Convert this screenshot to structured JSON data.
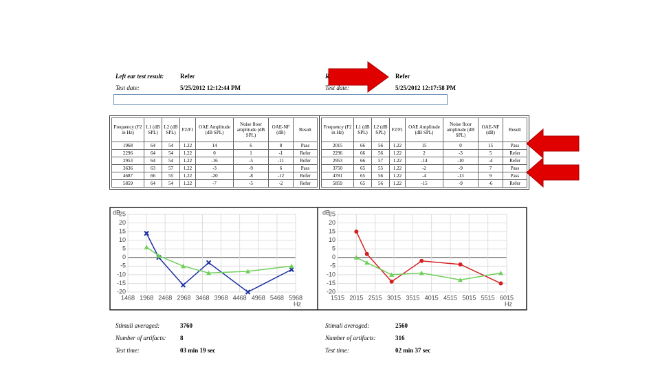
{
  "left": {
    "result_label": "Left ear test result:",
    "result": "Refer",
    "date_label": "Test date:",
    "date": "5/25/2012 12:12:44 PM",
    "table": {
      "columns": [
        "Frequency (F2 in Hz)",
        "L1 (dB SPL)",
        "L2 (dB SPL)",
        "F2/F1",
        "OAE Amplitude (dB SPL)",
        "Noise floor amplitude (dB SPL)",
        "OAE-NF (dB)",
        "Result"
      ],
      "rows": [
        [
          "1968",
          "64",
          "54",
          "1.22",
          "14",
          "6",
          "8",
          "Pass"
        ],
        [
          "2296",
          "64",
          "54",
          "1.22",
          "0",
          "1",
          "-1",
          "Refer"
        ],
        [
          "2953",
          "64",
          "54",
          "1.22",
          "-16",
          "-5",
          "-11",
          "Refer"
        ],
        [
          "3636",
          "63",
          "57",
          "1.22",
          "-3",
          "-9",
          "6",
          "Pass"
        ],
        [
          "4687",
          "66",
          "55",
          "1.22",
          "-20",
          "-8",
          "-12",
          "Refer"
        ],
        [
          "5859",
          "64",
          "54",
          "1.22",
          "-7",
          "-5",
          "-2",
          "Refer"
        ]
      ]
    },
    "summary": [
      {
        "label": "Stimuli averaged:",
        "value": "3760"
      },
      {
        "label": "Number of artifacts:",
        "value": "8"
      },
      {
        "label": "Test time:",
        "value": "03 min 19 sec"
      }
    ]
  },
  "right": {
    "result_label": "Right ear test result:",
    "result": "Refer",
    "date_label": "Test date:",
    "date": "5/25/2012 12:17:58 PM",
    "table": {
      "columns": [
        "Frequency (F2 in Hz)",
        "L1 (dB SPL)",
        "L2 (dB SPL)",
        "F2/F1",
        "OAE Amplitude (dB SPL)",
        "Noise floor amplitude (dB SPL)",
        "OAE-NF (dB)",
        "Result"
      ],
      "rows": [
        [
          "2015",
          "66",
          "56",
          "1.22",
          "15",
          "0",
          "15",
          "Pass"
        ],
        [
          "2296",
          "66",
          "56",
          "1.22",
          "2",
          "-3",
          "5",
          "Refer"
        ],
        [
          "2953",
          "66",
          "57",
          "1.22",
          "-14",
          "-10",
          "-4",
          "Refer"
        ],
        [
          "3750",
          "65",
          "55",
          "1.22",
          "-2",
          "-9",
          "7",
          "Pass"
        ],
        [
          "4781",
          "65",
          "56",
          "1.22",
          "-4",
          "-13",
          "9",
          "Pass"
        ],
        [
          "5859",
          "65",
          "56",
          "1.22",
          "-15",
          "-9",
          "-6",
          "Refer"
        ]
      ]
    },
    "summary": [
      {
        "label": "Stimuli averaged:",
        "value": "2560"
      },
      {
        "label": "Number of artifacts:",
        "value": "316"
      },
      {
        "label": "Test time:",
        "value": "02 min 37 sec"
      }
    ]
  },
  "charts": [
    {
      "type": "line",
      "ylabel": "dB",
      "xlabel": "Hz",
      "x": [
        1968,
        2296,
        2953,
        3636,
        4687,
        5859
      ],
      "series": [
        {
          "color": "#1c2fa0",
          "marker": "x",
          "values": [
            14,
            0,
            -16,
            -3,
            -20,
            -7
          ]
        },
        {
          "color": "#6fcf5a",
          "marker": "triangle",
          "values": [
            6,
            1,
            -5,
            -9,
            -8,
            -5
          ]
        }
      ],
      "xlim": [
        1468,
        5968
      ],
      "xticks": [
        1468,
        1968,
        2468,
        2968,
        3468,
        3968,
        4468,
        4968,
        5468,
        5968
      ],
      "ylim": [
        -20,
        25
      ],
      "yticks": [
        -20,
        -15,
        -10,
        -5,
        0,
        5,
        10,
        15,
        20,
        25
      ],
      "grid": true
    },
    {
      "type": "line",
      "ylabel": "dB",
      "xlabel": "Hz",
      "x": [
        2015,
        2296,
        2953,
        3750,
        4781,
        5859
      ],
      "series": [
        {
          "color": "#d42020",
          "marker": "circle",
          "values": [
            15,
            2,
            -14,
            -2,
            -4,
            -15
          ]
        },
        {
          "color": "#6fcf5a",
          "marker": "triangle",
          "values": [
            0,
            -3,
            -10,
            -9,
            -13,
            -9
          ]
        }
      ],
      "xlim": [
        1515,
        6015
      ],
      "xticks": [
        1515,
        2015,
        2515,
        3015,
        3515,
        4015,
        4515,
        5015,
        5515,
        6015
      ],
      "ylim": [
        -20,
        25
      ],
      "yticks": [
        -20,
        -15,
        -10,
        -5,
        0,
        5,
        10,
        15,
        20,
        25
      ],
      "grid": true
    }
  ]
}
